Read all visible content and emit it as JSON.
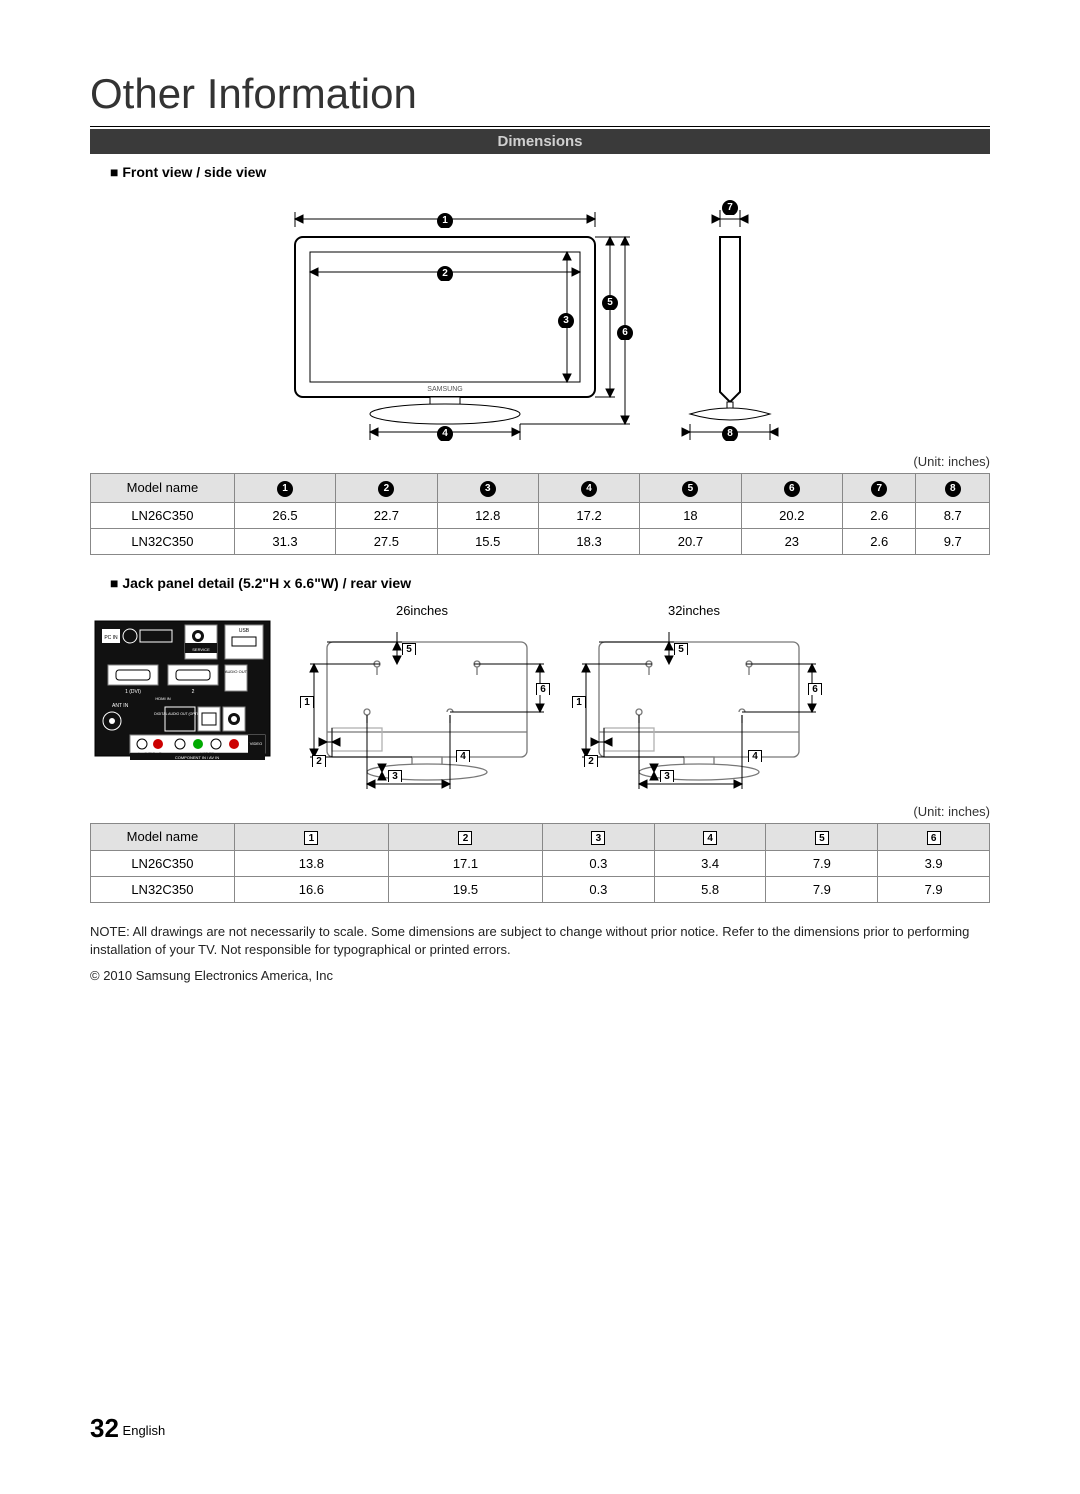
{
  "page": {
    "title": "Other Information",
    "section": "Dimensions",
    "sub1": "Front view / side view",
    "sub2": "Jack panel detail (5.2\"H x 6.6\"W) / rear view",
    "unit": "(Unit: inches)",
    "note": "NOTE: All drawings are not necessarily to scale. Some dimensions are subject to change without prior notice.  Refer to the dimensions prior to performing installation of your TV. Not responsible for typographical or printed errors.",
    "copyright": "© 2010 Samsung Electronics America, Inc",
    "page_number": "32",
    "page_lang": "English",
    "rear_labels": {
      "a": "26inches",
      "b": "32inches"
    }
  },
  "table1": {
    "header": "Model name",
    "cols": 8,
    "rows": [
      {
        "name": "LN26C350",
        "v": [
          "26.5",
          "22.7",
          "12.8",
          "17.2",
          "18",
          "20.2",
          "2.6",
          "8.7"
        ]
      },
      {
        "name": "LN32C350",
        "v": [
          "31.3",
          "27.5",
          "15.5",
          "18.3",
          "20.7",
          "23",
          "2.6",
          "9.7"
        ]
      }
    ]
  },
  "table2": {
    "header": "Model name",
    "cols": 6,
    "rows": [
      {
        "name": "LN26C350",
        "v": [
          "13.8",
          "17.1",
          "0.3",
          "3.4",
          "7.9",
          "3.9"
        ]
      },
      {
        "name": "LN32C350",
        "v": [
          "16.6",
          "19.5",
          "0.3",
          "5.8",
          "7.9",
          "7.9"
        ]
      }
    ]
  },
  "style": {
    "stroke": "#000000",
    "panel_stroke": "#777777",
    "bg": "#ffffff",
    "header_bg": "#e2e2e2",
    "bar_bg": "#3a3a3a",
    "bar_fg": "#d0d0d0"
  }
}
